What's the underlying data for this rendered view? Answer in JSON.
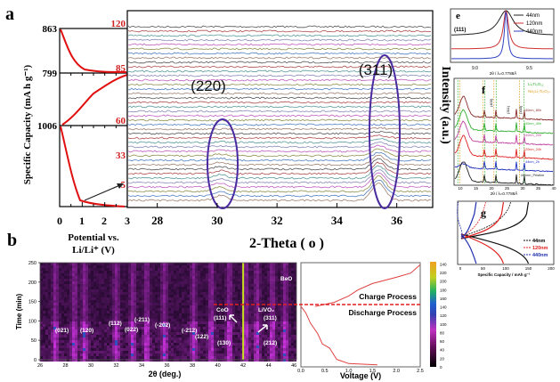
{
  "panel_labels": {
    "a": "a",
    "b": "b",
    "e": "e",
    "f": "f",
    "g": "g"
  },
  "chart_data": [
    {
      "panel": "a-left",
      "type": "line",
      "ylabel": "Specific Capacity (mA h g⁻¹)",
      "xlabel_line1": "Potential vs.",
      "xlabel_line2": "Li/Li⁺ (V)",
      "x_ticks": [
        "0",
        "1",
        "2",
        "3"
      ],
      "xlim": [
        0,
        3
      ],
      "capacity_labels": [
        "863",
        "799",
        "1006"
      ],
      "time_labels": [
        "120",
        "85",
        "60",
        "33",
        "5"
      ]
    },
    {
      "panel": "a-main",
      "type": "line",
      "xlabel": "2-Theta ( o )",
      "ylabel": "Intensity (a.u.)",
      "x_ticks": [
        "28",
        "30",
        "32",
        "34",
        "36"
      ],
      "xlim": [
        27,
        37.2
      ],
      "annotations": [
        "(220)",
        "(311)"
      ],
      "peak_positions": [
        30.1,
        35.4
      ],
      "trace_count": 40,
      "trace_colors": [
        "#555555",
        "#b05050",
        "#5a9a9a",
        "#8a8aba",
        "#c060c0",
        "#909050",
        "#5080c0",
        "#a08070"
      ]
    },
    {
      "panel": "b-heatmap",
      "type": "heatmap",
      "xlabel": "2θ (deg.)",
      "ylabel": "Time (min)",
      "x_ticks": [
        "26",
        "28",
        "30",
        "32",
        "34",
        "36",
        "38",
        "40",
        "42",
        "44",
        "46"
      ],
      "y_ticks": [
        "0",
        "50",
        "100",
        "150",
        "200",
        "250"
      ],
      "xlim": [
        26,
        46.2
      ],
      "ylim": [
        0,
        250
      ],
      "peak_labels": [
        "(021)",
        "(120)",
        "(112)",
        "(022)",
        "(-211)",
        "(-202)",
        "(-212)",
        "(122)",
        "(130)",
        "CoO",
        "(111)",
        "LiVO₂",
        "(311)",
        "(212)",
        "BeO"
      ],
      "stripes": [
        27.1,
        28.6,
        29.4,
        31.9,
        33.2,
        34.3,
        35.7,
        38.0,
        39.4,
        40.8,
        42.1,
        43.0,
        44.2,
        45.2
      ],
      "switch_time": 145
    },
    {
      "panel": "b-voltage",
      "type": "line",
      "xlabel": "Voltage (V)",
      "x_ticks": [
        "0.0",
        "0.5",
        "1.0",
        "1.5",
        "2.0",
        "2.5"
      ],
      "xlim": [
        0,
        2.5
      ],
      "ylim": [
        0,
        250
      ],
      "labels": [
        "Charge Process",
        "Discharge Process"
      ],
      "discharge": [
        [
          0.0,
          145
        ],
        [
          0.1,
          130
        ],
        [
          0.2,
          105
        ],
        [
          0.35,
          80
        ],
        [
          0.45,
          55
        ],
        [
          0.6,
          45
        ],
        [
          0.75,
          18
        ],
        [
          1.0,
          8
        ],
        [
          1.6,
          5
        ]
      ],
      "charge": [
        [
          0.3,
          145
        ],
        [
          0.7,
          155
        ],
        [
          1.0,
          170
        ],
        [
          1.2,
          185
        ],
        [
          1.5,
          200
        ],
        [
          2.0,
          215
        ],
        [
          2.3,
          225
        ],
        [
          2.5,
          245
        ]
      ]
    },
    {
      "panel": "b-colorbar",
      "type": "heatmap",
      "ticks": [
        "0",
        "20",
        "40",
        "60",
        "80",
        "100",
        "120",
        "140",
        "160",
        "180",
        "200",
        "220",
        "240"
      ]
    },
    {
      "panel": "e",
      "type": "line",
      "xlabel": "2θ / λ=0.7788Å",
      "x_ticks": [
        "9.0",
        "9.5"
      ],
      "annotation": "(111)",
      "series": [
        {
          "name": "44nm",
          "color": "#222222",
          "fwhm": 0.14
        },
        {
          "name": "120nm",
          "color": "#d03030",
          "fwhm": 0.05
        },
        {
          "name": "440nm",
          "color": "#3040c0",
          "fwhm": 0.03
        }
      ]
    },
    {
      "panel": "f",
      "type": "line",
      "xlabel": "2θ / λ=0.7788Å",
      "x_ticks": [
        "10",
        "15",
        "20",
        "25",
        "30",
        "35",
        "40"
      ],
      "legend": [
        "Li₄Ti₅O₁₂",
        "Na₂Li₂Ti₆O₁₄"
      ],
      "hkl": [
        "(400)",
        "(311)",
        "(440)"
      ],
      "series": [
        {
          "name": "440nm_80h",
          "color": "#8a2a2a"
        },
        {
          "name": "440nm_40h",
          "color": "#30b030"
        },
        {
          "name": "440nm_20h",
          "color": "#c040a0"
        },
        {
          "name": "120nm_24h",
          "color": "#e02020"
        },
        {
          "name": "44nm_2h",
          "color": "#2030c0"
        },
        {
          "name": "440nm_Pristine",
          "color": "#222222"
        }
      ]
    },
    {
      "panel": "g",
      "type": "line",
      "xlabel": "Specific Capacity / mAh g⁻¹",
      "x_ticks": [
        "0",
        "50",
        "100",
        "150",
        "200"
      ],
      "series": [
        {
          "name": "44nm",
          "color": "#111111",
          "capacity": 150
        },
        {
          "name": "120nm",
          "color": "#e02020",
          "capacity": 95
        },
        {
          "name": "440nm",
          "color": "#2030b0",
          "capacity": 35
        }
      ]
    }
  ]
}
